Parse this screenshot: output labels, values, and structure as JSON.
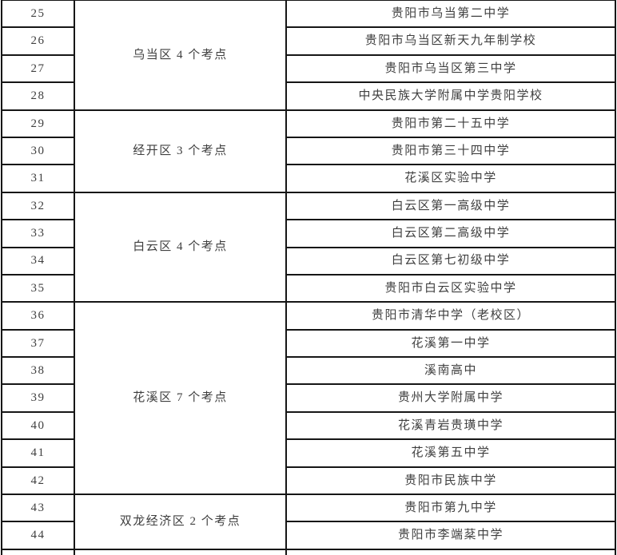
{
  "page": {
    "type": "document-table-excerpt",
    "colors": {
      "background": "#ffffff",
      "border": "#161616",
      "text": "#3f3f3f"
    }
  },
  "table": {
    "visible_row_range": "25-44",
    "groups": [
      {
        "label": "乌当区 4 个考点",
        "rows": [
          {
            "no": "25",
            "school": "贵阳市乌当第二中学"
          },
          {
            "no": "26",
            "school": "贵阳市乌当区新天九年制学校"
          },
          {
            "no": "27",
            "school": "贵阳市乌当区第三中学"
          },
          {
            "no": "28",
            "school": "中央民族大学附属中学贵阳学校"
          }
        ]
      },
      {
        "label": "经开区 3 个考点",
        "rows": [
          {
            "no": "29",
            "school": "贵阳市第二十五中学"
          },
          {
            "no": "30",
            "school": "贵阳市第三十四中学"
          },
          {
            "no": "31",
            "school": "花溪区实验中学"
          }
        ]
      },
      {
        "label": "白云区 4 个考点",
        "rows": [
          {
            "no": "32",
            "school": "白云区第一高级中学"
          },
          {
            "no": "33",
            "school": "白云区第二高级中学"
          },
          {
            "no": "34",
            "school": "白云区第七初级中学"
          },
          {
            "no": "35",
            "school": "贵阳市白云区实验中学"
          }
        ]
      },
      {
        "label": "花溪区 7 个考点",
        "rows": [
          {
            "no": "36",
            "school": "贵阳市清华中学（老校区）"
          },
          {
            "no": "37",
            "school": "花溪第一中学"
          },
          {
            "no": "38",
            "school": "溪南高中"
          },
          {
            "no": "39",
            "school": "贵州大学附属中学"
          },
          {
            "no": "40",
            "school": "花溪青岩贵璜中学"
          },
          {
            "no": "41",
            "school": "花溪第五中学"
          },
          {
            "no": "42",
            "school": "贵阳市民族中学"
          }
        ]
      },
      {
        "label": "双龙经济区 2 个考点",
        "rows": [
          {
            "no": "43",
            "school": "贵阳市第九中学"
          },
          {
            "no": "44",
            "school": "贵阳市李端棻中学"
          }
        ]
      }
    ]
  }
}
